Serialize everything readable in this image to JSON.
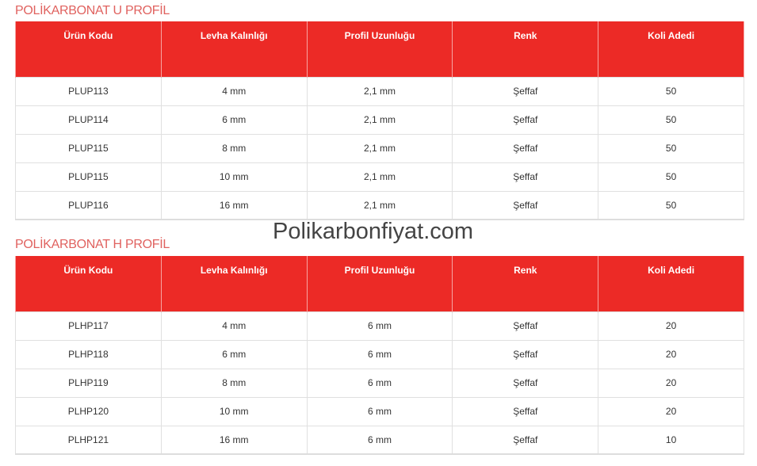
{
  "watermark": "Polikarbonfiyat.com",
  "columns": [
    "Ürün Kodu",
    "Levha Kalınlığı",
    "Profil Uzunluğu",
    "Renk",
    "Koli Adedi"
  ],
  "tables": [
    {
      "title": "POLİKARBONAT U PROFİL",
      "rows": [
        [
          "PLUP113",
          "4 mm",
          "2,1 mm",
          "Şeffaf",
          "50"
        ],
        [
          "PLUP114",
          "6 mm",
          "2,1 mm",
          "Şeffaf",
          "50"
        ],
        [
          "PLUP115",
          "8 mm",
          "2,1 mm",
          "Şeffaf",
          "50"
        ],
        [
          "PLUP115",
          "10 mm",
          "2,1 mm",
          "Şeffaf",
          "50"
        ],
        [
          "PLUP116",
          "16 mm",
          "2,1 mm",
          "Şeffaf",
          "50"
        ]
      ]
    },
    {
      "title": "POLİKARBONAT H PROFİL",
      "rows": [
        [
          "PLHP117",
          "4 mm",
          "6 mm",
          "Şeffaf",
          "20"
        ],
        [
          "PLHP118",
          "6 mm",
          "6 mm",
          "Şeffaf",
          "20"
        ],
        [
          "PLHP119",
          "8 mm",
          "6 mm",
          "Şeffaf",
          "20"
        ],
        [
          "PLHP120",
          "10 mm",
          "6 mm",
          "Şeffaf",
          "20"
        ],
        [
          "PLHP121",
          "16 mm",
          "6 mm",
          "Şeffaf",
          "10"
        ]
      ]
    }
  ]
}
